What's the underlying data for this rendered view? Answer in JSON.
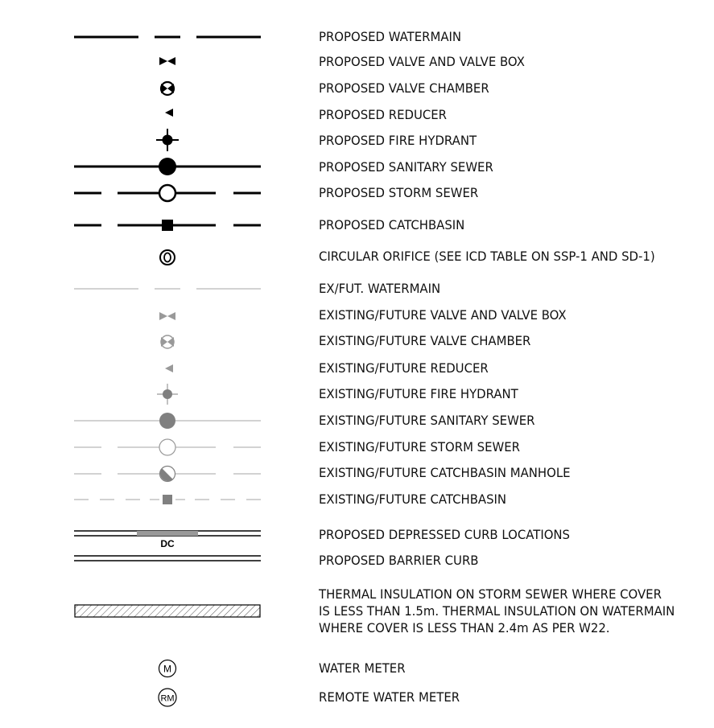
{
  "legend": {
    "items": [
      {
        "label": "PROPOSED WATERMAIN"
      },
      {
        "label": "PROPOSED VALVE AND VALVE BOX"
      },
      {
        "label": "PROPOSED VALVE CHAMBER"
      },
      {
        "label": "PROPOSED REDUCER"
      },
      {
        "label": "PROPOSED FIRE HYDRANT"
      },
      {
        "label": "PROPOSED SANITARY SEWER"
      },
      {
        "label": "PROPOSED STORM SEWER"
      },
      {
        "label": "PROPOSED CATCHBASIN"
      },
      {
        "label": "CIRCULAR ORIFICE (SEE ICD TABLE ON SSP-1 AND SD-1)"
      },
      {
        "label": "EX/FUT. WATERMAIN"
      },
      {
        "label": "EXISTING/FUTURE VALVE AND VALVE BOX"
      },
      {
        "label": "EXISTING/FUTURE VALVE CHAMBER"
      },
      {
        "label": "EXISTING/FUTURE REDUCER"
      },
      {
        "label": "EXISTING/FUTURE FIRE HYDRANT"
      },
      {
        "label": "EXISTING/FUTURE SANITARY SEWER"
      },
      {
        "label": "EXISTING/FUTURE STORM SEWER"
      },
      {
        "label": "EXISTING/FUTURE CATCHBASIN MANHOLE"
      },
      {
        "label": "EXISTING/FUTURE CATCHBASIN"
      },
      {
        "label": "PROPOSED DEPRESSED CURB LOCATIONS",
        "symbol_text": "DC"
      },
      {
        "label": "PROPOSED BARRIER CURB"
      },
      {
        "label": "THERMAL INSULATION ON STORM SEWER WHERE COVER\nIS LESS THAN 1.5m. THERMAL INSULATION ON WATERMAIN\nWHERE COVER IS LESS THAN 2.4m AS PER W22."
      },
      {
        "label": "WATER METER",
        "symbol_text": "M"
      },
      {
        "label": "REMOTE WATER METER",
        "symbol_text": "RM"
      }
    ]
  },
  "colors": {
    "proposed": "#000000",
    "existing_line": "#a6a6a6",
    "existing_fill": "#808080",
    "curb_highlight": "#999999",
    "hatch": "#555555"
  }
}
